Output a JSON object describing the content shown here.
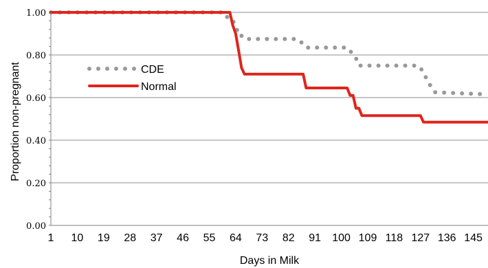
{
  "chart_data": {
    "type": "line",
    "title": "",
    "xlabel": "Days in Milk",
    "ylabel": "Proportion non-pregnant",
    "xlim": [
      1,
      150
    ],
    "ylim": [
      0,
      1
    ],
    "grid": "horizontal",
    "legend_position": "left",
    "y_tick_labels": [
      "0.00",
      "0.20",
      "0.40",
      "0.60",
      "0.80",
      "1.00"
    ],
    "y_tick_values": [
      0,
      0.2,
      0.4,
      0.6,
      0.8,
      1.0
    ],
    "x_tick_labels": [
      "1",
      "10",
      "19",
      "28",
      "37",
      "46",
      "55",
      "64",
      "73",
      "82",
      "91",
      "100",
      "109",
      "118",
      "127",
      "136",
      "145"
    ],
    "x_tick_values": [
      1,
      10,
      19,
      28,
      37,
      46,
      55,
      64,
      73,
      82,
      91,
      100,
      109,
      118,
      127,
      136,
      145
    ],
    "series": [
      {
        "name": "CDE",
        "color": "#999999",
        "style": "dotted",
        "x": [
          1,
          59,
          60,
          61,
          62,
          63,
          64,
          65,
          66,
          67,
          85,
          86,
          87,
          88,
          102,
          103,
          104,
          105,
          106,
          126,
          127,
          128,
          129,
          130,
          131,
          132,
          150
        ],
        "y": [
          1.0,
          1.0,
          0.98,
          0.98,
          0.96,
          0.96,
          0.94,
          0.89,
          0.89,
          0.875,
          0.875,
          0.865,
          0.85,
          0.835,
          0.835,
          0.82,
          0.8,
          0.785,
          0.75,
          0.75,
          0.74,
          0.715,
          0.69,
          0.665,
          0.64,
          0.625,
          0.615
        ]
      },
      {
        "name": "Normal",
        "color": "#e0241b",
        "style": "solid",
        "x": [
          1,
          62,
          63,
          64,
          65,
          66,
          67,
          87,
          88,
          102,
          103,
          104,
          105,
          106,
          107,
          127,
          128,
          150
        ],
        "y": [
          1.0,
          1.0,
          0.94,
          0.9,
          0.82,
          0.74,
          0.71,
          0.71,
          0.645,
          0.645,
          0.61,
          0.61,
          0.55,
          0.55,
          0.515,
          0.515,
          0.485,
          0.485
        ]
      }
    ]
  }
}
